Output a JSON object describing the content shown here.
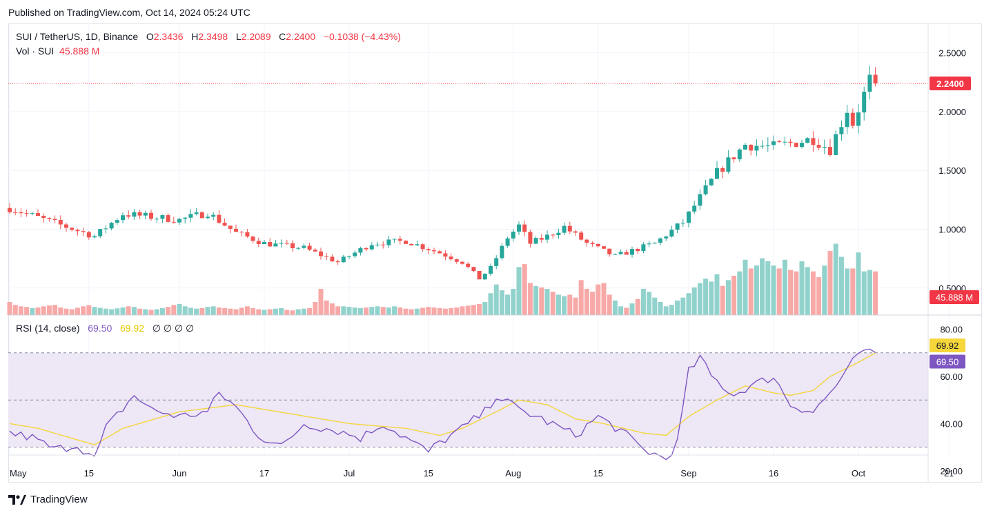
{
  "header": {
    "published": "Published on TradingView.com, Oct 14, 2024 05:24 UTC"
  },
  "legend": {
    "symbol": "SUI / TetherUS, 1D, Binance",
    "o_label": "O",
    "o": "2.3436",
    "h_label": "H",
    "h": "2.3498",
    "l_label": "L",
    "l": "2.2089",
    "c_label": "C",
    "c": "2.2400",
    "change": "−0.1038 (−4.43%)",
    "vol_label": "Vol · SUI",
    "vol": "45.888 M"
  },
  "rsi_legend": {
    "label": "RSI (14, close)",
    "rsi": "69.50",
    "ma": "69.92",
    "extra": "∅  ∅  ∅  ∅"
  },
  "footer": {
    "brand": "TradingView"
  },
  "colors": {
    "up": "#26a69a",
    "down": "#ef5350",
    "vol_up": "#92d2cc",
    "vol_down": "#f7a9a7",
    "rsi": "#7e57c2",
    "rsi_ma": "#f5d63b",
    "rsi_band": "#ede7f6",
    "price_tag": "#f23645"
  },
  "chart_data": [
    {
      "type": "candlestick",
      "title": "SUI / TetherUS, 1D, Binance",
      "x_ticks": [
        "May",
        "15",
        "Jun",
        "17",
        "Jul",
        "15",
        "Aug",
        "15",
        "Sep",
        "16",
        "Oct",
        "21"
      ],
      "y_ticks": [
        "0.5000",
        "1.0000",
        "1.5000",
        "2.0000",
        "2.5000"
      ],
      "ylim": [
        0.27,
        2.75
      ],
      "last_price_label": "2.2400",
      "volume_label": "45.888 M",
      "grid": true,
      "anchors": [
        [
          0,
          1.18
        ],
        [
          10,
          1.02
        ],
        [
          15,
          0.94
        ],
        [
          20,
          1.13
        ],
        [
          30,
          1.08
        ],
        [
          35,
          1.14
        ],
        [
          40,
          0.97
        ],
        [
          45,
          0.88
        ],
        [
          52,
          0.84
        ],
        [
          58,
          0.72
        ],
        [
          64,
          0.88
        ],
        [
          70,
          0.9
        ],
        [
          76,
          0.8
        ],
        [
          80,
          0.72
        ],
        [
          83,
          0.58
        ],
        [
          85,
          0.67
        ],
        [
          88,
          0.93
        ],
        [
          90,
          1.03
        ],
        [
          92,
          0.88
        ],
        [
          95,
          0.94
        ],
        [
          98,
          1.02
        ],
        [
          102,
          0.88
        ],
        [
          107,
          0.77
        ],
        [
          114,
          0.88
        ],
        [
          119,
          1.06
        ],
        [
          125,
          1.48
        ],
        [
          130,
          1.72
        ],
        [
          135,
          1.7
        ],
        [
          142,
          1.77
        ],
        [
          145,
          1.68
        ],
        [
          148,
          2.02
        ],
        [
          149,
          1.9
        ],
        [
          152,
          2.27
        ],
        [
          153,
          2.24
        ]
      ],
      "volume": [
        0.45,
        0.35,
        0.3,
        0.28,
        0.24,
        0.26,
        0.3,
        0.33,
        0.35,
        0.26,
        0.22,
        0.2,
        0.25,
        0.3,
        0.34,
        0.28,
        0.25,
        0.22,
        0.2,
        0.23,
        0.26,
        0.3,
        0.28,
        0.22,
        0.2,
        0.18,
        0.2,
        0.24,
        0.28,
        0.35,
        0.38,
        0.3,
        0.25,
        0.22,
        0.24,
        0.28,
        0.3,
        0.26,
        0.24,
        0.22,
        0.2,
        0.25,
        0.3,
        0.24,
        0.2,
        0.18,
        0.2,
        0.22,
        0.24,
        0.18,
        0.16,
        0.2,
        0.22,
        0.24,
        0.45,
        0.9,
        0.5,
        0.4,
        0.3,
        0.3,
        0.28,
        0.26,
        0.24,
        0.26,
        0.28,
        0.3,
        0.28,
        0.26,
        0.3,
        0.26,
        0.22,
        0.2,
        0.22,
        0.25,
        0.28,
        0.26,
        0.24,
        0.22,
        0.24,
        0.26,
        0.3,
        0.32,
        0.35,
        0.38,
        0.45,
        0.75,
        1.05,
        0.85,
        0.7,
        0.9,
        1.65,
        1.75,
        1.1,
        1.0,
        0.95,
        0.9,
        0.8,
        0.7,
        0.65,
        0.7,
        0.6,
        1.2,
        0.9,
        0.8,
        1.05,
        1.1,
        0.7,
        0.5,
        0.3,
        0.25,
        0.4,
        0.55,
        0.9,
        0.8,
        0.6,
        0.45,
        0.3,
        0.35,
        0.5,
        0.6,
        0.75,
        0.95,
        1.1,
        1.25,
        1.15,
        1.4,
        1.0,
        1.2,
        1.35,
        1.5,
        1.9,
        1.6,
        1.7,
        1.95,
        1.85,
        1.7,
        1.6,
        1.9,
        1.55,
        1.5,
        1.85,
        1.65,
        1.5,
        1.3,
        1.7,
        2.2,
        2.45,
        2.0,
        1.6,
        1.6,
        2.15,
        1.5,
        1.55,
        1.5,
        1.45,
        1.4,
        0.5
      ]
    },
    {
      "type": "line",
      "title": "RSI (14, close)",
      "y_ticks": [
        "20.00",
        "40.00",
        "60.00",
        "80.00"
      ],
      "ylim": [
        15,
        86
      ],
      "bands": [
        30,
        70
      ],
      "midline": 50,
      "series": [
        {
          "name": "RSI",
          "last": "69.50",
          "anchors": [
            [
              0,
              36
            ],
            [
              4,
              34
            ],
            [
              8,
              29
            ],
            [
              12,
              31
            ],
            [
              15,
              25
            ],
            [
              17,
              38
            ],
            [
              22,
              52
            ],
            [
              25,
              46
            ],
            [
              30,
              43
            ],
            [
              35,
              45
            ],
            [
              37,
              53
            ],
            [
              40,
              47
            ],
            [
              44,
              35
            ],
            [
              48,
              30
            ],
            [
              52,
              40
            ],
            [
              58,
              37
            ],
            [
              62,
              34
            ],
            [
              66,
              40
            ],
            [
              70,
              34
            ],
            [
              74,
              28
            ],
            [
              76,
              32
            ],
            [
              80,
              38
            ],
            [
              84,
              45
            ],
            [
              86,
              52
            ],
            [
              90,
              46
            ],
            [
              94,
              42
            ],
            [
              100,
              35
            ],
            [
              104,
              43
            ],
            [
              108,
              37
            ],
            [
              112,
              29
            ],
            [
              116,
              25
            ],
            [
              118,
              32
            ],
            [
              120,
              62
            ],
            [
              122,
              68
            ],
            [
              124,
              60
            ],
            [
              128,
              52
            ],
            [
              130,
              55
            ],
            [
              135,
              60
            ],
            [
              138,
              48
            ],
            [
              142,
              45
            ],
            [
              145,
              53
            ],
            [
              148,
              62
            ],
            [
              150,
              70
            ],
            [
              153,
              69.5
            ]
          ]
        },
        {
          "name": "MA",
          "last": "69.92",
          "anchors": [
            [
              0,
              40
            ],
            [
              5,
              38
            ],
            [
              15,
              31
            ],
            [
              20,
              38
            ],
            [
              30,
              45
            ],
            [
              40,
              48
            ],
            [
              50,
              44
            ],
            [
              60,
              40
            ],
            [
              70,
              38
            ],
            [
              76,
              35
            ],
            [
              80,
              38
            ],
            [
              86,
              45
            ],
            [
              90,
              50
            ],
            [
              95,
              48
            ],
            [
              100,
              42
            ],
            [
              105,
              40
            ],
            [
              112,
              36
            ],
            [
              116,
              35
            ],
            [
              120,
              43
            ],
            [
              125,
              50
            ],
            [
              130,
              56
            ],
            [
              135,
              53
            ],
            [
              138,
              52
            ],
            [
              142,
              54
            ],
            [
              145,
              60
            ],
            [
              150,
              66
            ],
            [
              153,
              69.92
            ]
          ]
        }
      ]
    }
  ]
}
